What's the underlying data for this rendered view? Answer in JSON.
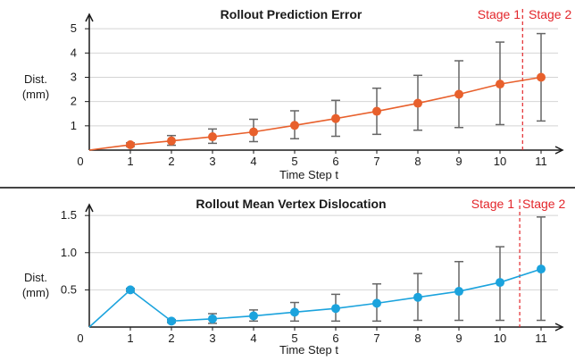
{
  "chart_data": [
    {
      "type": "line",
      "title": "Rollout Prediction Error",
      "xlabel": "Time Step t",
      "ylabel": [
        "Dist.",
        "(mm)"
      ],
      "x": [
        1,
        2,
        3,
        4,
        5,
        6,
        7,
        8,
        9,
        10,
        11
      ],
      "x_ticks": [
        "0",
        "1",
        "2",
        "3",
        "4",
        "5",
        "6",
        "7",
        "8",
        "9",
        "10",
        "11"
      ],
      "y_ticks": [
        "1",
        "2",
        "3",
        "4",
        "5"
      ],
      "xlim": [
        0,
        11.5
      ],
      "ylim": [
        0,
        5.3
      ],
      "color": "#e8602c",
      "series": [
        {
          "values": [
            0.22,
            0.38,
            0.55,
            0.75,
            1.02,
            1.3,
            1.6,
            1.93,
            2.3,
            2.72,
            3.0
          ],
          "error_low": [
            0.15,
            0.2,
            0.28,
            0.35,
            0.47,
            0.57,
            0.65,
            0.82,
            0.93,
            1.05,
            1.2
          ],
          "error_high": [
            0.3,
            0.6,
            0.87,
            1.27,
            1.62,
            2.05,
            2.55,
            3.08,
            3.68,
            4.45,
            4.8
          ]
        }
      ],
      "line_start": [
        0,
        0
      ],
      "stage_divider_x": 10.55,
      "stage_labels": [
        "Stage 1",
        "Stage 2"
      ],
      "stage_divider_style": "dashed"
    },
    {
      "type": "line",
      "title": "Rollout Mean Vertex Dislocation",
      "xlabel": "Time Step t",
      "ylabel": [
        "Dist.",
        "(mm)"
      ],
      "x": [
        1,
        2,
        3,
        4,
        5,
        6,
        7,
        8,
        9,
        10,
        11
      ],
      "x_ticks": [
        "0",
        "1",
        "2",
        "3",
        "4",
        "5",
        "6",
        "7",
        "8",
        "9",
        "10",
        "11"
      ],
      "y_ticks": [
        "0.5",
        "1.0",
        "1.5"
      ],
      "xlim": [
        0,
        11.5
      ],
      "ylim": [
        0,
        1.55
      ],
      "color": "#1ba3dd",
      "series": [
        {
          "values": [
            0.5,
            0.08,
            0.11,
            0.15,
            0.2,
            0.25,
            0.32,
            0.4,
            0.48,
            0.6,
            0.78
          ],
          "error_low": [
            0.48,
            0.06,
            0.05,
            0.08,
            0.08,
            0.08,
            0.08,
            0.09,
            0.09,
            0.09,
            0.09
          ],
          "error_high": [
            0.52,
            0.1,
            0.18,
            0.23,
            0.33,
            0.44,
            0.58,
            0.72,
            0.88,
            1.08,
            1.48
          ]
        }
      ],
      "line_start": [
        0,
        0
      ],
      "stage_divider_x": 10.48,
      "stage_labels": [
        "Stage 1",
        "Stage 2"
      ],
      "stage_divider_style": "dashed"
    }
  ]
}
